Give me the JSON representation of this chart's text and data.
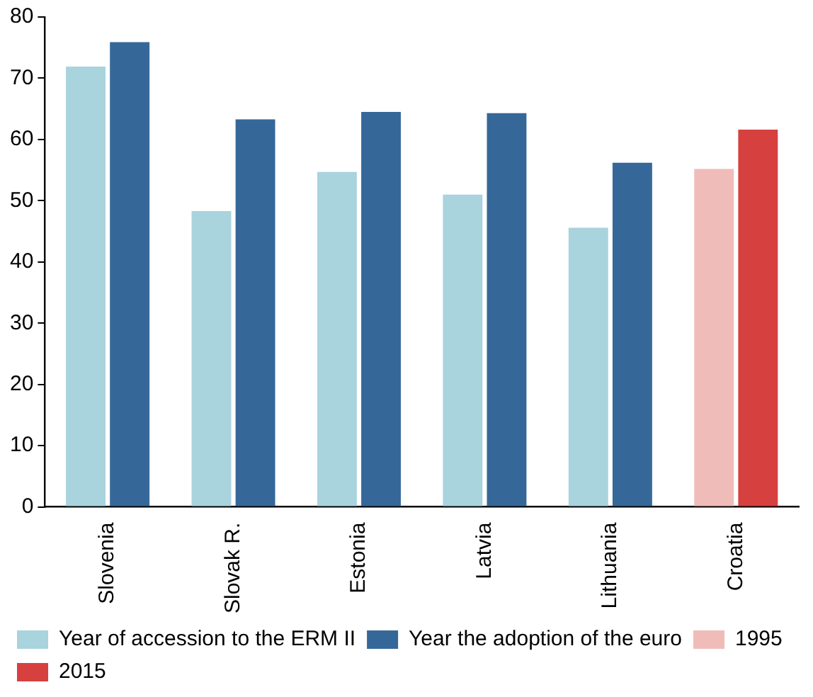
{
  "chart_data": {
    "type": "bar",
    "categories": [
      "Slovenia",
      "Slovak R.",
      "Estonia",
      "Latvia",
      "Lithuania",
      "Croatia"
    ],
    "series": [
      {
        "name": "Year of accession to the ERM II",
        "color": "#a9d3dd",
        "values": [
          71.9,
          48.3,
          54.7,
          51,
          45.6,
          null
        ]
      },
      {
        "name": "Year the adoption of the euro",
        "color": "#356898",
        "values": [
          75.9,
          63.3,
          64.5,
          64.3,
          56.2,
          null
        ]
      },
      {
        "name": "1995",
        "color": "#efbcb9",
        "values": [
          null,
          null,
          null,
          null,
          null,
          55.2
        ]
      },
      {
        "name": "2015",
        "color": "#d6403e",
        "values": [
          null,
          null,
          null,
          null,
          null,
          61.6
        ]
      }
    ],
    "ylim": [
      0,
      80
    ],
    "yticks": [
      0,
      10,
      20,
      30,
      40,
      50,
      60,
      70,
      80
    ],
    "grid": false,
    "legend": "bottom"
  }
}
